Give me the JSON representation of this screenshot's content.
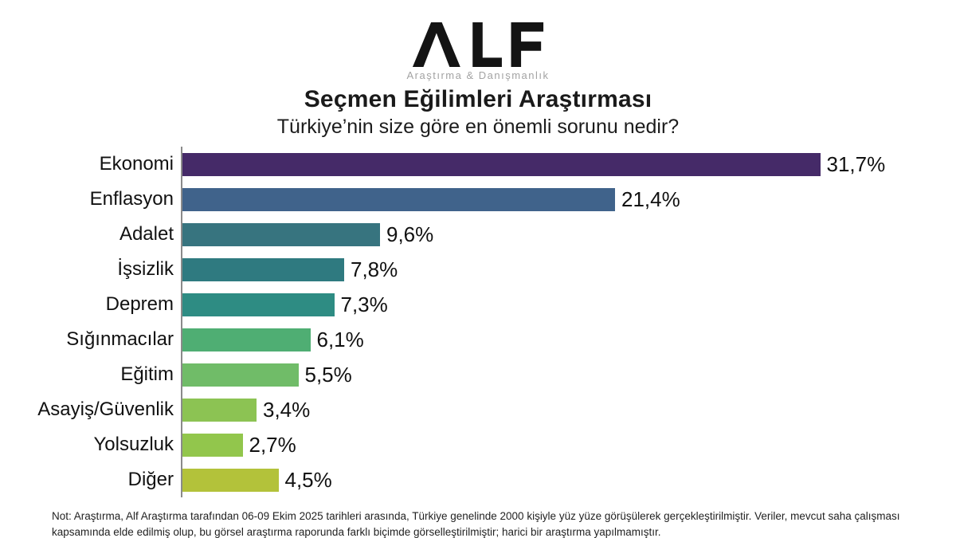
{
  "logo": {
    "text": "ALF",
    "tagline": "Araştırma & Danışmanlık"
  },
  "title": "Seçmen Eğilimleri Araştırması",
  "subtitle": "Türkiye’nin size göre en önemli sorunu nedir?",
  "chart_data": {
    "type": "bar",
    "orientation": "horizontal",
    "title": "Seçmen Eğilimleri Araştırması",
    "subtitle": "Türkiye’nin size göre en önemli sorunu nedir?",
    "categories": [
      "Ekonomi",
      "Enflasyon",
      "Adalet",
      "İşsizlik",
      "Deprem",
      "Sığınmacılar",
      "Eğitim",
      "Asayiş/Güvenlik",
      "Yolsuzluk",
      "Diğer"
    ],
    "values": [
      31.7,
      21.4,
      9.6,
      7.8,
      7.3,
      6.1,
      5.5,
      3.4,
      2.7,
      4.5
    ],
    "value_labels": [
      "31,7%",
      "21,4%",
      "9,6%",
      "7,8%",
      "7,3%",
      "6,1%",
      "5,5%",
      "3,4%",
      "2,7%",
      "4,5%"
    ],
    "bar_colors": [
      "#452A68",
      "#40638B",
      "#37747F",
      "#2F7A80",
      "#2E8C83",
      "#4FAE73",
      "#70BC68",
      "#8CC353",
      "#92C64C",
      "#B3C23A"
    ],
    "xlim": [
      0,
      38
    ],
    "grid": false,
    "legend": "none",
    "axis_line_color": "#8a8a8a"
  },
  "footnote": "Not: Araştırma, Alf Araştırma tarafından 06-09 Ekim 2025 tarihleri arasında, Türkiye genelinde 2000 kişiyle yüz yüze görüşülerek gerçekleştirilmiştir. Veriler, mevcut saha çalışması kapsamında elde edilmiş olup, bu görsel araştırma raporunda farklı biçimde görselleştirilmiştir; harici bir araştırma yapılmamıştır."
}
